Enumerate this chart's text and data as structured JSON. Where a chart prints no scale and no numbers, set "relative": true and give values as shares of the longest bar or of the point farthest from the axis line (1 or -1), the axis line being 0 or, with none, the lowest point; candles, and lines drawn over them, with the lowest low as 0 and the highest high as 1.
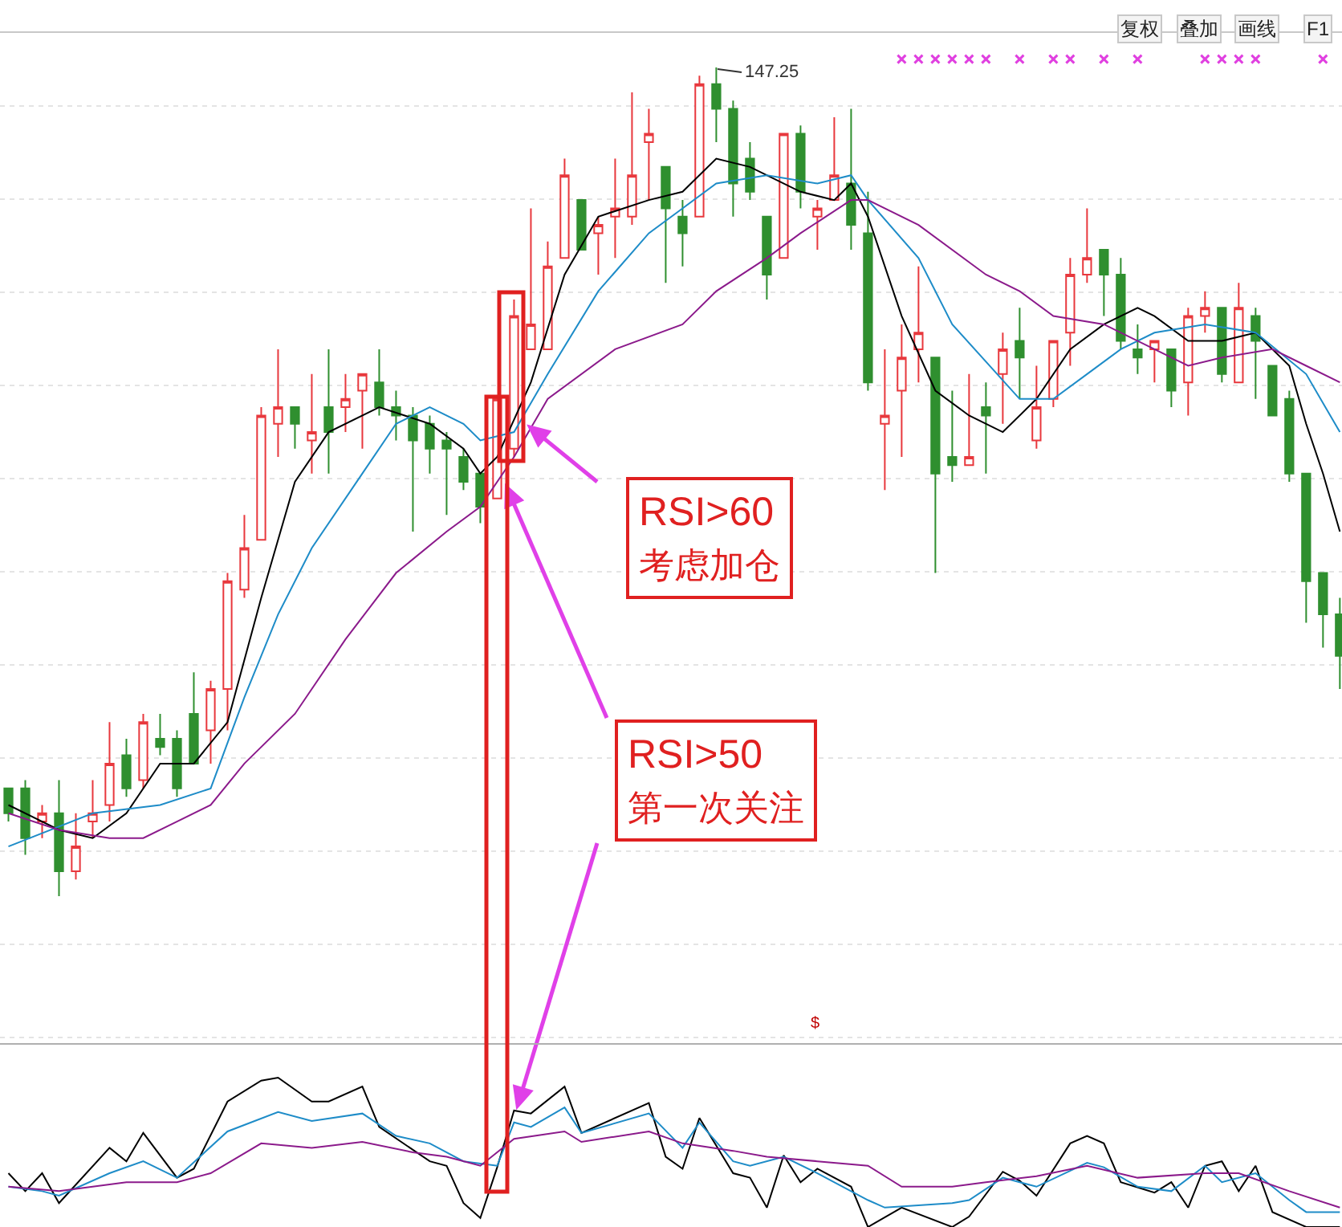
{
  "chart_data": [
    {
      "type": "candlestick",
      "relative": true,
      "grid": "y",
      "categories": [
        null,
        null,
        null,
        null,
        null,
        null,
        null,
        null,
        null,
        null,
        null,
        null,
        null,
        null,
        null,
        null,
        null,
        null,
        null,
        null,
        null,
        null,
        null,
        null,
        null,
        null,
        null,
        null,
        null,
        null,
        null,
        null,
        null,
        null,
        null,
        null,
        null,
        null,
        null,
        null,
        null,
        null,
        null,
        null,
        null,
        null,
        null,
        null,
        null,
        null,
        null,
        null,
        null,
        null,
        null,
        null,
        null,
        null,
        null,
        null,
        null,
        null,
        null,
        null,
        null,
        null,
        null,
        null,
        null,
        null,
        null,
        null,
        null,
        null,
        null,
        null,
        null,
        null,
        null,
        null
      ],
      "ohlc": [
        [
          0.13,
          0.13,
          0.09,
          0.1
        ],
        [
          0.13,
          0.14,
          0.05,
          0.07
        ],
        [
          0.09,
          0.11,
          0.07,
          0.1
        ],
        [
          0.1,
          0.14,
          0,
          0.03
        ],
        [
          0.03,
          0.1,
          0.02,
          0.06
        ],
        [
          0.09,
          0.14,
          0.07,
          0.1
        ],
        [
          0.11,
          0.21,
          0.09,
          0.16
        ],
        [
          0.17,
          0.19,
          0.12,
          0.13
        ],
        [
          0.14,
          0.22,
          0.13,
          0.21
        ],
        [
          0.19,
          0.22,
          0.17,
          0.18
        ],
        [
          0.19,
          0.2,
          0.12,
          0.13
        ],
        [
          0.22,
          0.27,
          0.16,
          0.16
        ],
        [
          0.2,
          0.26,
          0.16,
          0.25
        ],
        [
          0.25,
          0.39,
          0.2,
          0.38
        ],
        [
          0.37,
          0.46,
          0.36,
          0.42
        ],
        [
          0.43,
          0.59,
          0.43,
          0.58
        ],
        [
          0.57,
          0.66,
          0.53,
          0.59
        ],
        [
          0.59,
          0.59,
          0.54,
          0.57
        ],
        [
          0.55,
          0.63,
          0.51,
          0.56
        ],
        [
          0.59,
          0.66,
          0.51,
          0.56
        ],
        [
          0.59,
          0.63,
          0.56,
          0.6
        ],
        [
          0.61,
          0.63,
          0.54,
          0.63
        ],
        [
          0.62,
          0.66,
          0.58,
          0.59
        ],
        [
          0.59,
          0.61,
          0.55,
          0.58
        ],
        [
          0.58,
          0.59,
          0.44,
          0.55
        ],
        [
          0.57,
          0.58,
          0.51,
          0.54
        ],
        [
          0.55,
          0.56,
          0.46,
          0.54
        ],
        [
          0.53,
          0.54,
          0.49,
          0.5
        ],
        [
          0.51,
          0.51,
          0.45,
          0.47
        ],
        [
          0.48,
          0.6,
          0.48,
          0.6
        ],
        [
          0.54,
          0.72,
          0.53,
          0.7
        ],
        [
          0.66,
          0.83,
          0.66,
          0.69
        ],
        [
          0.66,
          0.79,
          0.66,
          0.76
        ],
        [
          0.77,
          0.89,
          0.77,
          0.87
        ],
        [
          0.84,
          0.84,
          0.78,
          0.78
        ],
        [
          0.8,
          0.82,
          0.75,
          0.81
        ],
        [
          0.82,
          0.89,
          0.77,
          0.83
        ],
        [
          0.82,
          0.97,
          0.81,
          0.87
        ],
        [
          0.91,
          0.95,
          0.84,
          0.92
        ],
        [
          0.88,
          0.88,
          0.74,
          0.83
        ],
        [
          0.82,
          0.84,
          0.76,
          0.8
        ],
        [
          0.82,
          0.99,
          0.82,
          0.98
        ],
        [
          0.98,
          1.0,
          0.91,
          0.95
        ],
        [
          0.95,
          0.96,
          0.82,
          0.86
        ],
        [
          0.89,
          0.91,
          0.84,
          0.85
        ],
        [
          0.82,
          0.82,
          0.72,
          0.75
        ],
        [
          0.77,
          0.92,
          0.77,
          0.92
        ],
        [
          0.92,
          0.93,
          0.83,
          0.85
        ],
        [
          0.82,
          0.84,
          0.78,
          0.83
        ],
        [
          0.84,
          0.94,
          0.84,
          0.87
        ],
        [
          0.86,
          0.95,
          0.78,
          0.81
        ],
        [
          0.8,
          0.85,
          0.61,
          0.62
        ],
        [
          0.57,
          0.66,
          0.49,
          0.58
        ],
        [
          0.61,
          0.69,
          0.53,
          0.65
        ],
        [
          0.66,
          0.76,
          0.62,
          0.68
        ],
        [
          0.65,
          0.65,
          0.39,
          0.51
        ],
        [
          0.53,
          0.61,
          0.5,
          0.52
        ],
        [
          0.52,
          0.63,
          0.52,
          0.53
        ],
        [
          0.59,
          0.62,
          0.51,
          0.58
        ],
        [
          0.63,
          0.68,
          0.57,
          0.66
        ],
        [
          0.67,
          0.71,
          0.6,
          0.65
        ],
        [
          0.55,
          0.64,
          0.54,
          0.59
        ],
        [
          0.6,
          0.67,
          0.59,
          0.67
        ],
        [
          0.68,
          0.77,
          0.64,
          0.75
        ],
        [
          0.75,
          0.83,
          0.74,
          0.77
        ],
        [
          0.78,
          0.78,
          0.7,
          0.75
        ],
        [
          0.75,
          0.77,
          0.66,
          0.67
        ],
        [
          0.66,
          0.69,
          0.63,
          0.65
        ],
        [
          0.66,
          0.67,
          0.62,
          0.67
        ],
        [
          0.66,
          0.66,
          0.59,
          0.61
        ],
        [
          0.62,
          0.71,
          0.58,
          0.7
        ],
        [
          0.7,
          0.73,
          0.68,
          0.71
        ],
        [
          0.71,
          0.71,
          0.62,
          0.63
        ],
        [
          0.62,
          0.74,
          0.62,
          0.71
        ],
        [
          0.7,
          0.71,
          0.6,
          0.67
        ],
        [
          0.64,
          0.64,
          0.58,
          0.58
        ],
        [
          0.6,
          0.61,
          0.5,
          0.51
        ],
        [
          0.51,
          0.51,
          0.33,
          0.38
        ],
        [
          0.39,
          0.39,
          0.3,
          0.34
        ],
        [
          0.34,
          0.36,
          0.25,
          0.29
        ]
      ],
      "series": [
        {
          "type": "line",
          "color": "#000000",
          "values": [
            0.11,
            null,
            null,
            0.08,
            null,
            0.07,
            null,
            0.1,
            null,
            0.16,
            null,
            0.16,
            null,
            0.21,
            null,
            0.36,
            0.43,
            0.5,
            null,
            0.56,
            null,
            null,
            0.59,
            null,
            null,
            0.57,
            null,
            0.54,
            0.51,
            0.53,
            null,
            0.62,
            null,
            0.75,
            null,
            0.82,
            null,
            null,
            0.84,
            null,
            0.85,
            null,
            0.89,
            null,
            0.88,
            null,
            null,
            0.85,
            null,
            0.84,
            0.86,
            0.82,
            null,
            0.7,
            null,
            0.61,
            null,
            0.58,
            null,
            0.56,
            null,
            0.6,
            null,
            0.66,
            null,
            0.69,
            null,
            0.71,
            0.7,
            null,
            0.67,
            null,
            0.67,
            null,
            0.68,
            null,
            0.64,
            0.57,
            0.51,
            0.44
          ]
        },
        {
          "type": "line",
          "color": "#1e8cc8",
          "values": [
            0.06,
            null,
            null,
            null,
            null,
            0.1,
            null,
            null,
            null,
            0.11,
            null,
            null,
            0.13,
            null,
            0.24,
            null,
            0.34,
            null,
            0.42,
            null,
            null,
            0.51,
            null,
            0.57,
            null,
            0.59,
            null,
            0.57,
            0.55,
            null,
            0.56,
            null,
            0.63,
            null,
            null,
            0.73,
            null,
            null,
            0.8,
            null,
            0.83,
            null,
            0.86,
            null,
            null,
            0.87,
            null,
            null,
            0.86,
            null,
            0.87,
            0.84,
            null,
            null,
            0.77,
            null,
            0.69,
            null,
            null,
            null,
            0.6,
            null,
            0.6,
            null,
            0.63,
            null,
            0.66,
            null,
            0.68,
            null,
            null,
            0.69,
            null,
            null,
            0.68,
            null,
            null,
            0.63,
            null,
            0.56
          ]
        },
        {
          "type": "line",
          "color": "#8b1a8b",
          "values": [
            0.1,
            null,
            null,
            0.08,
            null,
            null,
            0.07,
            null,
            0.07,
            null,
            0.09,
            null,
            0.11,
            null,
            0.16,
            null,
            null,
            0.22,
            null,
            null,
            0.31,
            null,
            null,
            0.39,
            null,
            null,
            0.44,
            null,
            0.47,
            null,
            0.53,
            null,
            0.6,
            null,
            null,
            null,
            0.66,
            null,
            null,
            null,
            0.69,
            null,
            0.73,
            null,
            null,
            0.77,
            null,
            0.8,
            null,
            null,
            0.84,
            0.84,
            null,
            null,
            0.81,
            null,
            null,
            null,
            0.75,
            null,
            0.73,
            null,
            0.7,
            null,
            null,
            0.69,
            null,
            null,
            0.66,
            null,
            0.64,
            null,
            0.65,
            null,
            null,
            0.66,
            null,
            0.64,
            null,
            0.62
          ]
        },
        {
          "type": "scatter",
          "color": "#e040e0",
          "marker": "cross",
          "values": [
            null,
            null,
            null,
            null,
            null,
            null,
            null,
            null,
            null,
            null,
            null,
            null,
            null,
            null,
            null,
            null,
            null,
            null,
            null,
            null,
            null,
            null,
            null,
            null,
            null,
            null,
            null,
            null,
            null,
            null,
            null,
            null,
            null,
            null,
            null,
            null,
            null,
            null,
            null,
            null,
            null,
            null,
            null,
            null,
            null,
            null,
            null,
            null,
            null,
            null,
            null,
            null,
            null,
            1.01,
            1.01,
            1.01,
            1.01,
            1.01,
            1.01,
            null,
            1.01,
            null,
            1.01,
            1.01,
            null,
            1.01,
            null,
            1.01,
            null,
            null,
            null,
            1.01,
            1.01,
            1.01,
            1.01,
            null,
            null,
            null,
            1.01,
            null
          ]
        }
      ],
      "annotations": [
        "复权",
        "叠加",
        "画线",
        "F1",
        "147.25",
        "RSI>60\n考虑加仓",
        "RSI>50\n第一次关注"
      ]
    },
    {
      "type": "line",
      "relative": true,
      "categories": [
        null,
        null,
        null,
        null,
        null,
        null,
        null,
        null,
        null,
        null,
        null,
        null,
        null,
        null,
        null,
        null,
        null,
        null,
        null,
        null,
        null,
        null,
        null,
        null,
        null,
        null,
        null,
        null,
        null,
        null,
        null,
        null,
        null,
        null,
        null,
        null,
        null,
        null,
        null,
        null,
        null,
        null,
        null,
        null,
        null,
        null,
        null,
        null,
        null,
        null,
        null,
        null,
        null,
        null,
        null,
        null,
        null,
        null,
        null,
        null,
        null,
        null,
        null,
        null,
        null,
        null,
        null,
        null,
        null,
        null,
        null,
        null,
        null,
        null,
        null,
        null,
        null,
        null,
        null,
        null
      ],
      "series": [
        {
          "color": "#000000",
          "values": [
            0.36,
            0.24,
            0.36,
            0.16,
            null,
            null,
            0.53,
            0.44,
            0.63,
            null,
            0.33,
            0.39,
            null,
            0.84,
            null,
            0.98,
            1.0,
            null,
            0.84,
            0.84,
            null,
            0.94,
            0.67,
            null,
            null,
            0.44,
            0.41,
            0.16,
            0.06,
            0.4,
            0.78,
            0.76,
            null,
            0.94,
            0.63,
            null,
            null,
            null,
            0.83,
            0.47,
            0.39,
            0.73,
            null,
            0.36,
            0.33,
            0.13,
            0.48,
            0.3,
            0.39,
            null,
            0.27,
            0,
            null,
            0.13,
            null,
            null,
            0,
            0.07,
            null,
            0.37,
            0.31,
            0.21,
            null,
            0.56,
            0.61,
            0.56,
            0.3,
            null,
            0.23,
            0.3,
            0.13,
            0.41,
            0.44,
            0.24,
            0.41,
            0.1,
            null,
            0,
            null,
            0
          ]
        },
        {
          "color": "#1e8cc8",
          "values": [
            0.27,
            null,
            0.24,
            0.21,
            null,
            null,
            0.36,
            null,
            0.44,
            null,
            0.33,
            null,
            null,
            0.64,
            null,
            null,
            0.77,
            null,
            0.71,
            null,
            null,
            0.76,
            null,
            0.61,
            null,
            0.56,
            null,
            0.44,
            null,
            0.41,
            0.7,
            0.67,
            null,
            0.8,
            0.63,
            null,
            null,
            null,
            0.76,
            null,
            0.53,
            0.7,
            null,
            0.44,
            0.41,
            null,
            0.47,
            null,
            0.36,
            null,
            null,
            0.18,
            0.13,
            null,
            null,
            null,
            0.16,
            0.18,
            null,
            0.33,
            null,
            0.27,
            null,
            null,
            0.43,
            0.4,
            null,
            0.27,
            null,
            0.24,
            null,
            0.41,
            0.3,
            null,
            0.36,
            null,
            0.18,
            0.1,
            null,
            0.1
          ]
        },
        {
          "color": "#8b1a8b",
          "values": [
            0.27,
            null,
            null,
            0.24,
            null,
            null,
            null,
            0.3,
            null,
            null,
            0.3,
            null,
            0.36,
            null,
            null,
            0.56,
            null,
            null,
            0.53,
            null,
            null,
            0.57,
            null,
            null,
            0.5,
            null,
            0.47,
            null,
            0.41,
            null,
            0.59,
            null,
            null,
            0.64,
            0.57,
            null,
            null,
            null,
            0.64,
            null,
            0.56,
            null,
            null,
            0.51,
            null,
            0.47,
            null,
            null,
            0.44,
            null,
            null,
            0.41,
            null,
            0.27,
            null,
            null,
            0.27,
            null,
            0.3,
            null,
            null,
            0.34,
            null,
            null,
            0.41,
            null,
            null,
            0.33,
            null,
            null,
            null,
            0.36,
            null,
            0.36,
            null,
            null,
            0.24,
            null,
            null,
            0.13
          ]
        }
      ],
      "annotations": [
        "$"
      ]
    }
  ]
}
